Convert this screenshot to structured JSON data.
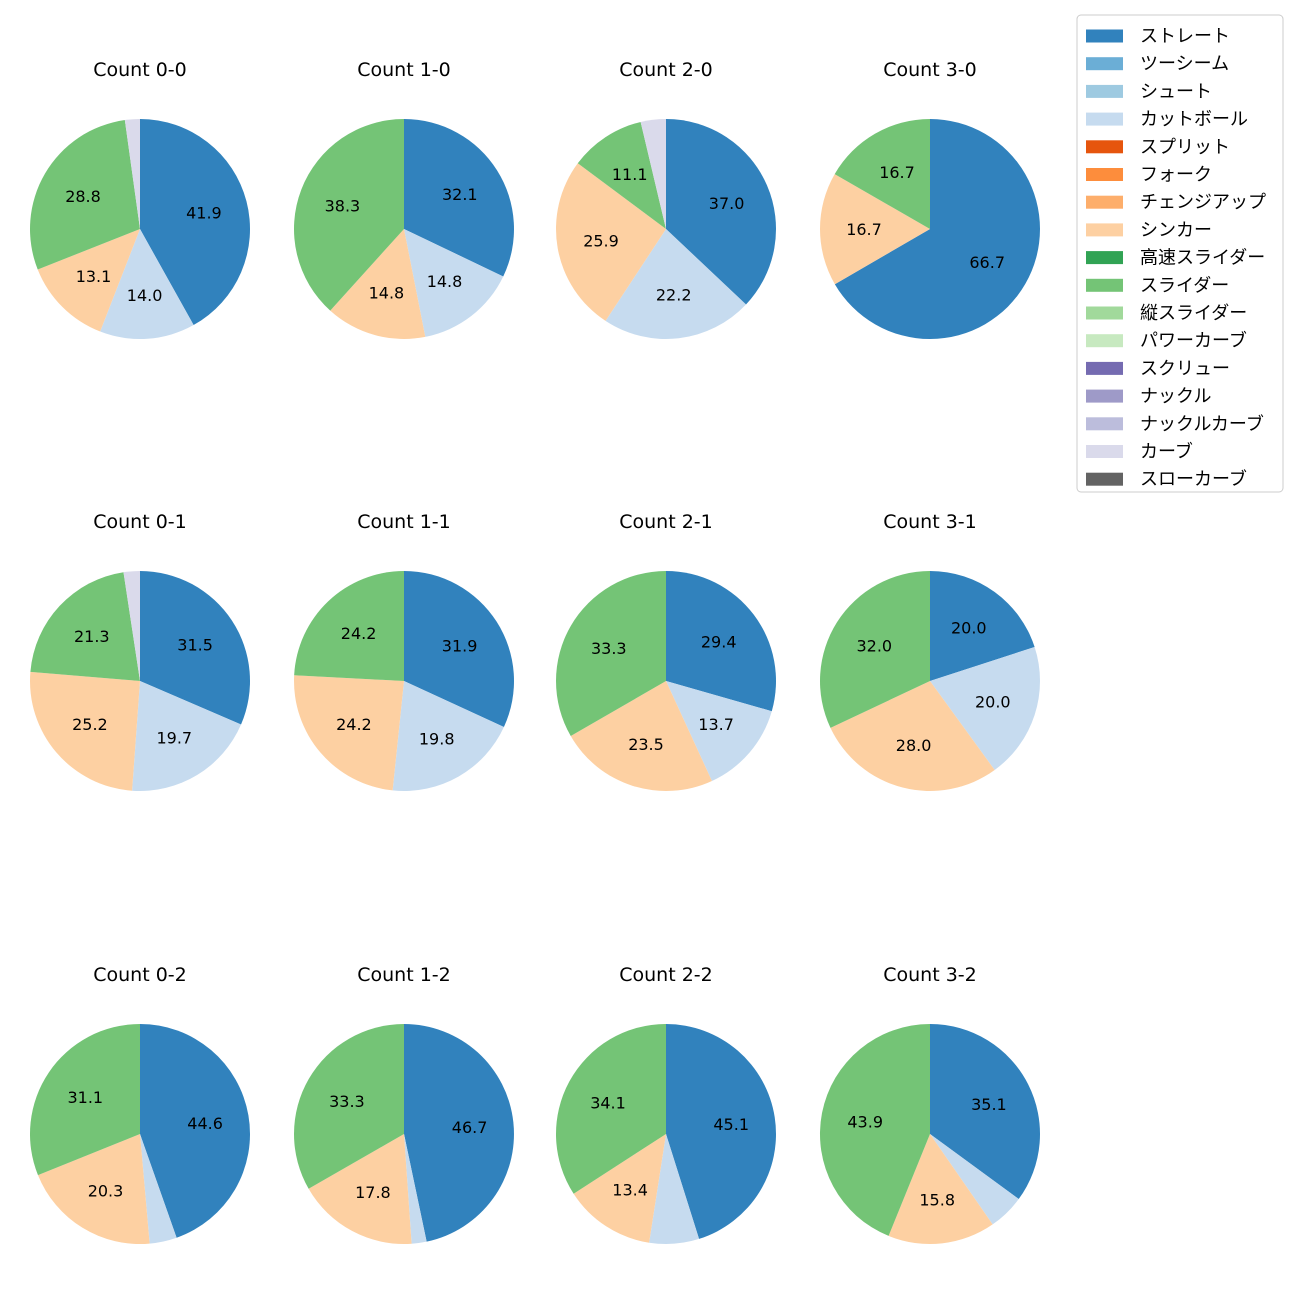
{
  "chart_data": {
    "type": "pie",
    "category_colors": {
      "ストレート": "#3182bd",
      "ツーシーム": "#6baed6",
      "シュート": "#9ecae1",
      "カットボール": "#c6dbef",
      "スプリット": "#e6550d",
      "フォーク": "#fd8d3c",
      "チェンジアップ": "#fdae6b",
      "シンカー": "#fdd0a2",
      "高速スライダー": "#31a354",
      "スライダー": "#74c476",
      "縦スライダー": "#a1d99b",
      "パワーカーブ": "#c7e9c0",
      "スクリュー": "#756bb1",
      "ナックル": "#9e9ac8",
      "ナックルカーブ": "#bcbddc",
      "カーブ": "#dadaeb",
      "スローカーブ": "#636363"
    },
    "legend": [
      "ストレート",
      "ツーシーム",
      "シュート",
      "カットボール",
      "スプリット",
      "フォーク",
      "チェンジアップ",
      "シンカー",
      "高速スライダー",
      "スライダー",
      "縦スライダー",
      "パワーカーブ",
      "スクリュー",
      "ナックル",
      "ナックルカーブ",
      "カーブ",
      "スローカーブ"
    ],
    "legend_position": "top-right",
    "charts": [
      {
        "title": "Count 0-0",
        "slices": [
          {
            "category": "ストレート",
            "value": 41.9,
            "label": "41.9"
          },
          {
            "category": "カットボール",
            "value": 14.0,
            "label": "14.0"
          },
          {
            "category": "シンカー",
            "value": 13.1,
            "label": "13.1"
          },
          {
            "category": "スライダー",
            "value": 28.8,
            "label": "28.8"
          },
          {
            "category": "カーブ",
            "value": 2.2,
            "label": ""
          }
        ]
      },
      {
        "title": "Count 1-0",
        "slices": [
          {
            "category": "ストレート",
            "value": 32.1,
            "label": "32.1"
          },
          {
            "category": "カットボール",
            "value": 14.8,
            "label": "14.8"
          },
          {
            "category": "シンカー",
            "value": 14.8,
            "label": "14.8"
          },
          {
            "category": "スライダー",
            "value": 38.3,
            "label": "38.3"
          }
        ]
      },
      {
        "title": "Count 2-0",
        "slices": [
          {
            "category": "ストレート",
            "value": 37.0,
            "label": "37.0"
          },
          {
            "category": "カットボール",
            "value": 22.2,
            "label": "22.2"
          },
          {
            "category": "シンカー",
            "value": 25.9,
            "label": "25.9"
          },
          {
            "category": "スライダー",
            "value": 11.1,
            "label": "11.1"
          },
          {
            "category": "カーブ",
            "value": 3.7,
            "label": ""
          }
        ]
      },
      {
        "title": "Count 3-0",
        "slices": [
          {
            "category": "ストレート",
            "value": 66.7,
            "label": "66.7"
          },
          {
            "category": "シンカー",
            "value": 16.7,
            "label": "16.7"
          },
          {
            "category": "スライダー",
            "value": 16.7,
            "label": "16.7"
          }
        ]
      },
      {
        "title": "Count 0-1",
        "slices": [
          {
            "category": "ストレート",
            "value": 31.5,
            "label": "31.5"
          },
          {
            "category": "カットボール",
            "value": 19.7,
            "label": "19.7"
          },
          {
            "category": "シンカー",
            "value": 25.2,
            "label": "25.2"
          },
          {
            "category": "スライダー",
            "value": 21.3,
            "label": "21.3"
          },
          {
            "category": "カーブ",
            "value": 2.4,
            "label": ""
          }
        ]
      },
      {
        "title": "Count 1-1",
        "slices": [
          {
            "category": "ストレート",
            "value": 31.9,
            "label": "31.9"
          },
          {
            "category": "カットボール",
            "value": 19.8,
            "label": "19.8"
          },
          {
            "category": "シンカー",
            "value": 24.2,
            "label": "24.2"
          },
          {
            "category": "スライダー",
            "value": 24.2,
            "label": "24.2"
          }
        ]
      },
      {
        "title": "Count 2-1",
        "slices": [
          {
            "category": "ストレート",
            "value": 29.4,
            "label": "29.4"
          },
          {
            "category": "カットボール",
            "value": 13.7,
            "label": "13.7"
          },
          {
            "category": "シンカー",
            "value": 23.5,
            "label": "23.5"
          },
          {
            "category": "スライダー",
            "value": 33.3,
            "label": "33.3"
          }
        ]
      },
      {
        "title": "Count 3-1",
        "slices": [
          {
            "category": "ストレート",
            "value": 20.0,
            "label": "20.0"
          },
          {
            "category": "カットボール",
            "value": 20.0,
            "label": "20.0"
          },
          {
            "category": "シンカー",
            "value": 28.0,
            "label": "28.0"
          },
          {
            "category": "スライダー",
            "value": 32.0,
            "label": "32.0"
          }
        ]
      },
      {
        "title": "Count 0-2",
        "slices": [
          {
            "category": "ストレート",
            "value": 44.6,
            "label": "44.6"
          },
          {
            "category": "カットボール",
            "value": 4.0,
            "label": ""
          },
          {
            "category": "シンカー",
            "value": 20.3,
            "label": "20.3"
          },
          {
            "category": "スライダー",
            "value": 31.1,
            "label": "31.1"
          }
        ]
      },
      {
        "title": "Count 1-2",
        "slices": [
          {
            "category": "ストレート",
            "value": 46.7,
            "label": "46.7"
          },
          {
            "category": "カットボール",
            "value": 2.2,
            "label": ""
          },
          {
            "category": "シンカー",
            "value": 17.8,
            "label": "17.8"
          },
          {
            "category": "スライダー",
            "value": 33.3,
            "label": "33.3"
          }
        ]
      },
      {
        "title": "Count 2-2",
        "slices": [
          {
            "category": "ストレート",
            "value": 45.1,
            "label": "45.1"
          },
          {
            "category": "カットボール",
            "value": 7.3,
            "label": ""
          },
          {
            "category": "シンカー",
            "value": 13.4,
            "label": "13.4"
          },
          {
            "category": "スライダー",
            "value": 34.1,
            "label": "34.1"
          }
        ]
      },
      {
        "title": "Count 3-2",
        "slices": [
          {
            "category": "ストレート",
            "value": 35.1,
            "label": "35.1"
          },
          {
            "category": "カットボール",
            "value": 5.3,
            "label": ""
          },
          {
            "category": "シンカー",
            "value": 15.8,
            "label": "15.8"
          },
          {
            "category": "スライダー",
            "value": 43.9,
            "label": "43.9"
          }
        ]
      }
    ]
  }
}
